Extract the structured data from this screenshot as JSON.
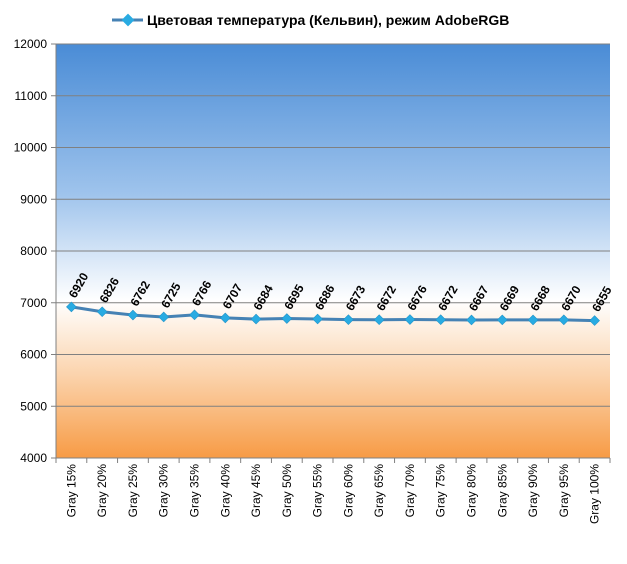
{
  "chart_data": {
    "type": "line",
    "title": "",
    "xlabel": "",
    "ylabel": "",
    "ylim": [
      4000,
      12000
    ],
    "yticks": [
      4000,
      5000,
      6000,
      7000,
      8000,
      9000,
      10000,
      11000,
      12000
    ],
    "grid": "horizontal",
    "legend_position": "top",
    "categories": [
      "Gray 15%",
      "Gray 20%",
      "Gray 25%",
      "Gray 30%",
      "Gray 35%",
      "Gray 40%",
      "Gray 45%",
      "Gray 50%",
      "Gray 55%",
      "Gray 60%",
      "Gray 65%",
      "Gray 70%",
      "Gray 75%",
      "Gray 80%",
      "Gray 85%",
      "Gray 90%",
      "Gray 95%",
      "Gray 100%"
    ],
    "series": [
      {
        "name": "Цветовая температура (Кельвин), режим AdobeRGB",
        "color": "#4682B4",
        "marker_color": "#29ABE2",
        "values": [
          6920,
          6826,
          6762,
          6725,
          6766,
          6707,
          6684,
          6695,
          6686,
          6673,
          6672,
          6676,
          6672,
          6667,
          6669,
          6668,
          6670,
          6655
        ]
      }
    ],
    "colors": {
      "background_top": "#4A8CD6",
      "background_mid": "#FFFFFF",
      "background_bottom": "#F79B45",
      "gridline": "#808080"
    }
  }
}
